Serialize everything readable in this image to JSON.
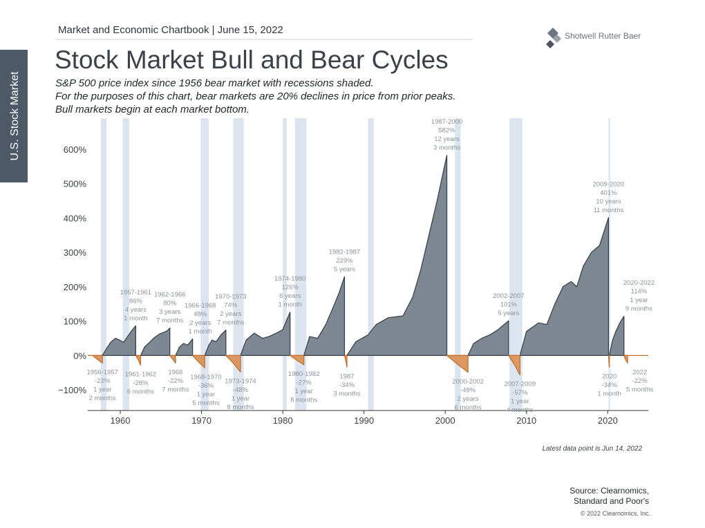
{
  "header": {
    "chartbook": "Market and Economic Chartbook | June 15, 2022",
    "logo": "Shotwell Rutter Baer",
    "title": "Stock Market Bull and Bear Cycles",
    "subtitle": [
      "S&P 500 price index since 1956 bear market with recessions shaded.",
      "For the purposes of this chart, bear markets are 20% declines in price from prior peaks.",
      "Bull markets begin at each market bottom."
    ]
  },
  "sidebar": "U.S. Stock Market",
  "chart_data": {
    "type": "cycles",
    "xlim": [
      1956,
      2025
    ],
    "xticks": [
      1960,
      1970,
      1980,
      1990,
      2000,
      2010,
      2020
    ],
    "ylim": [
      -160,
      690
    ],
    "yticks": [
      {
        "value": 600,
        "label": "600%"
      },
      {
        "value": 500,
        "label": "500%"
      },
      {
        "value": 400,
        "label": "400%"
      },
      {
        "value": 300,
        "label": "300%"
      },
      {
        "value": 200,
        "label": "200%"
      },
      {
        "value": 100,
        "label": "100%"
      },
      {
        "value": 0,
        "label": "0%"
      },
      {
        "value": -100,
        "label": "−100%"
      }
    ],
    "recession_color": "#dce5ef",
    "recessions": [
      [
        1957.6,
        1958.3
      ],
      [
        1960.3,
        1961.1
      ],
      [
        1969.9,
        1970.9
      ],
      [
        1973.9,
        1975.2
      ],
      [
        1980.0,
        1980.5
      ],
      [
        1981.5,
        1982.9
      ],
      [
        1990.5,
        1991.2
      ],
      [
        2001.2,
        2001.9
      ],
      [
        2007.9,
        2009.5
      ],
      [
        2020.1,
        2020.3
      ]
    ],
    "bull_color": "#7d8892",
    "bull_line": "#38424b",
    "bear_color": "#dc9863",
    "bear_line": "#c3702f",
    "bull_markets": [
      {
        "name": "1957-1961",
        "annotation": [
          "86%",
          "4 years",
          "1 month"
        ],
        "x": [
          1957.8,
          1958.3,
          1958.8,
          1959.4,
          1959.9,
          1960.4,
          1960.9,
          1961.4,
          1961.9,
          1961.9
        ],
        "values": [
          0,
          20,
          38,
          50,
          45,
          38,
          55,
          72,
          86,
          0
        ]
      },
      {
        "name": "1962-1966",
        "annotation": [
          "80%",
          "3 years",
          "7 months"
        ],
        "x": [
          1962.5,
          1963.0,
          1963.6,
          1964.2,
          1964.8,
          1965.4,
          1965.8,
          1966.1,
          1966.1
        ],
        "values": [
          0,
          25,
          38,
          52,
          62,
          68,
          72,
          80,
          0
        ]
      },
      {
        "name": "1966-1968",
        "annotation": [
          "48%",
          "2 years",
          "1 month"
        ],
        "x": [
          1966.8,
          1967.3,
          1967.8,
          1968.3,
          1968.9,
          1968.9
        ],
        "values": [
          0,
          25,
          35,
          30,
          48,
          0
        ]
      },
      {
        "name": "1970-1973",
        "annotation": [
          "74%",
          "2 years",
          "7 months"
        ],
        "x": [
          1970.4,
          1970.9,
          1971.3,
          1971.8,
          1972.4,
          1973.0,
          1973.0
        ],
        "values": [
          0,
          30,
          45,
          40,
          60,
          74,
          0
        ]
      },
      {
        "name": "1974-1980",
        "annotation": [
          "126%",
          "6 years",
          "1 month"
        ],
        "x": [
          1974.8,
          1975.5,
          1976.5,
          1977.5,
          1978.3,
          1979.2,
          1980.0,
          1980.9,
          1980.9
        ],
        "values": [
          0,
          45,
          65,
          50,
          55,
          65,
          75,
          126,
          0
        ]
      },
      {
        "name": "1982-1987",
        "annotation": [
          "229%",
          "5 years"
        ],
        "x": [
          1982.6,
          1983.3,
          1984.3,
          1985.3,
          1986.2,
          1986.9,
          1987.6,
          1987.6
        ],
        "values": [
          0,
          55,
          50,
          90,
          140,
          180,
          229,
          0
        ]
      },
      {
        "name": "1987-2000",
        "annotation": [
          "582%",
          "12 years",
          "3 months"
        ],
        "x": [
          1987.9,
          1989.0,
          1990.5,
          1991.5,
          1993.0,
          1994.8,
          1996.0,
          1997.0,
          1998.0,
          1999.0,
          2000.2,
          2000.2
        ],
        "values": [
          0,
          40,
          60,
          90,
          110,
          115,
          170,
          250,
          350,
          450,
          582,
          0
        ]
      },
      {
        "name": "2002-2007",
        "annotation": [
          "101%",
          "5 years"
        ],
        "x": [
          2002.8,
          2003.5,
          2004.5,
          2005.5,
          2006.5,
          2007.8,
          2007.8
        ],
        "values": [
          0,
          35,
          50,
          60,
          75,
          101,
          0
        ]
      },
      {
        "name": "2009-2020",
        "annotation": [
          "401%",
          "10 years",
          "11 months"
        ],
        "x": [
          2009.2,
          2010.0,
          2011.5,
          2012.5,
          2013.5,
          2014.5,
          2015.5,
          2016.2,
          2017.0,
          2018.0,
          2019.0,
          2020.1,
          2020.1
        ],
        "values": [
          0,
          70,
          95,
          90,
          150,
          200,
          215,
          200,
          260,
          300,
          320,
          401,
          0
        ]
      },
      {
        "name": "2020-2022",
        "annotation": [
          "114%",
          "1 year",
          "9 months"
        ],
        "x": [
          2020.2,
          2020.6,
          2021.0,
          2021.5,
          2022.0,
          2022.0
        ],
        "values": [
          0,
          45,
          70,
          95,
          114,
          0
        ]
      }
    ],
    "bear_markets": [
      {
        "name": "1956-1957",
        "annotation": [
          "-22%",
          "1 year",
          "2 months"
        ],
        "x": [
          1956.6,
          1957.0,
          1957.8,
          1957.8
        ],
        "values": [
          0,
          -8,
          -22,
          0
        ]
      },
      {
        "name": "1961-1962",
        "annotation": [
          "-28%",
          "6 months"
        ],
        "x": [
          1961.9,
          1962.2,
          1962.5,
          1962.5
        ],
        "values": [
          0,
          -12,
          -28,
          0
        ]
      },
      {
        "name": "1966",
        "annotation": [
          "-22%",
          "7 months"
        ],
        "x": [
          1966.1,
          1966.5,
          1966.8,
          1966.8
        ],
        "values": [
          0,
          -12,
          -22,
          0
        ]
      },
      {
        "name": "1968-1970",
        "annotation": [
          "-36%",
          "1 year",
          "5 months"
        ],
        "x": [
          1968.9,
          1969.6,
          1970.4,
          1970.4
        ],
        "values": [
          0,
          -18,
          -36,
          0
        ]
      },
      {
        "name": "1973-1974",
        "annotation": [
          "-48%",
          "1 year",
          "8 months"
        ],
        "x": [
          1973.0,
          1973.9,
          1974.8,
          1974.8
        ],
        "values": [
          0,
          -22,
          -48,
          0
        ]
      },
      {
        "name": "1980-1982",
        "annotation": [
          "-27%",
          "1 year",
          "8 months"
        ],
        "x": [
          1980.9,
          1981.8,
          1982.6,
          1982.6
        ],
        "values": [
          0,
          -15,
          -27,
          0
        ]
      },
      {
        "name": "1987",
        "annotation": [
          "-34%",
          "3 months"
        ],
        "x": [
          1987.6,
          1987.8,
          1987.9,
          1987.9
        ],
        "values": [
          0,
          -20,
          -34,
          0
        ]
      },
      {
        "name": "2000-2002",
        "annotation": [
          "-49%",
          "2 years",
          "6 months"
        ],
        "x": [
          2000.2,
          2001.5,
          2002.8,
          2002.8
        ],
        "values": [
          0,
          -25,
          -49,
          0
        ]
      },
      {
        "name": "2007-2009",
        "annotation": [
          "-57%",
          "1 year",
          "4 months"
        ],
        "x": [
          2007.8,
          2008.6,
          2009.2,
          2009.2
        ],
        "values": [
          0,
          -30,
          -57,
          0
        ]
      },
      {
        "name": "2020",
        "annotation": [
          "-34%",
          "1 month"
        ],
        "x": [
          2020.1,
          2020.15,
          2020.2,
          2020.2
        ],
        "values": [
          0,
          -20,
          -34,
          0
        ]
      },
      {
        "name": "2022",
        "annotation": [
          "-22%",
          "5 months"
        ],
        "x": [
          2022.0,
          2022.2,
          2022.45,
          2022.45
        ],
        "values": [
          0,
          -12,
          -22,
          0
        ]
      }
    ],
    "note": "Latest data point is Jun 14, 2022"
  },
  "footer": {
    "source": [
      "Source: Clearnomics,",
      "Standard and Poor's"
    ],
    "copyright": "© 2022 Clearnomics, Inc."
  }
}
